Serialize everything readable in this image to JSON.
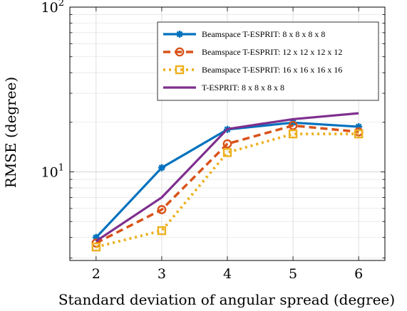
{
  "chart_data": {
    "type": "line",
    "xlabel": "Standard deviation of angular spread (degree)",
    "ylabel": "RMSE (degree)",
    "x": [
      2,
      3,
      4,
      5,
      6
    ],
    "xlim": [
      1.6,
      6.4
    ],
    "ylim": [
      2.9,
      100
    ],
    "yscale": "log",
    "x_ticks": [
      2,
      3,
      4,
      5,
      6
    ],
    "y_ticks": [
      {
        "value": 10,
        "base": "10",
        "exp": "1"
      },
      {
        "value": 100,
        "base": "10",
        "exp": "2"
      }
    ],
    "grid": true,
    "legend_position": "top-right",
    "series": [
      {
        "name": "Beamspace T-ESPRIT: 8 x 8 x 8 x 8",
        "values": [
          4.0,
          10.6,
          18.1,
          19.9,
          18.8
        ],
        "color": "#0072bd",
        "dash": "solid",
        "marker": "asterisk"
      },
      {
        "name": "Beamspace T-ESPRIT: 12 x 12 x 12 x 12",
        "values": [
          3.7,
          5.9,
          14.8,
          19.1,
          17.5
        ],
        "color": "#d95319",
        "dash": "dashed",
        "marker": "circle"
      },
      {
        "name": "Beamspace T-ESPRIT: 16 x 16 x 16 x 16",
        "values": [
          3.5,
          4.4,
          13.1,
          17.0,
          17.0
        ],
        "color": "#edb120",
        "dash": "dotted",
        "marker": "square"
      },
      {
        "name": "T-ESPRIT: 8 x 8 x 8 x 8",
        "values": [
          3.8,
          7.0,
          18.2,
          20.9,
          22.7
        ],
        "color": "#7e2f8e",
        "dash": "solid",
        "marker": "none"
      }
    ]
  }
}
